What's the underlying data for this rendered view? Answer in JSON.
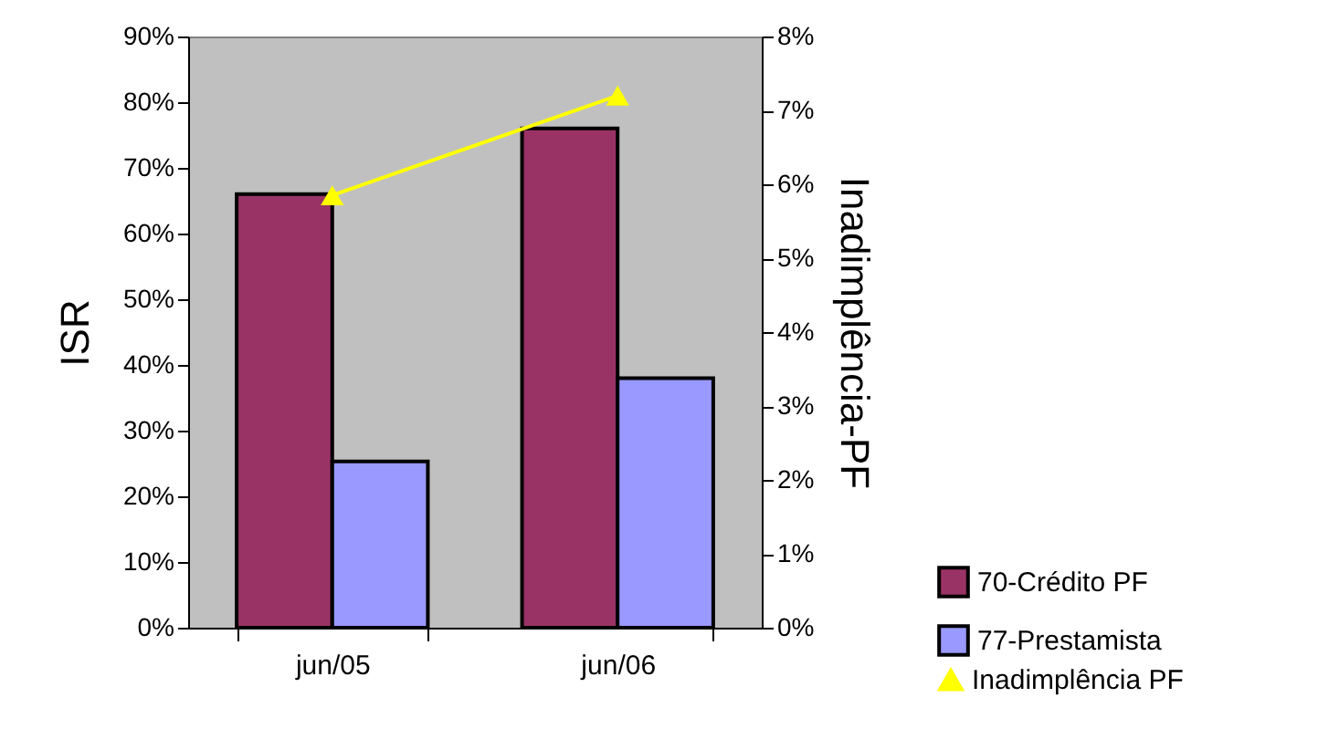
{
  "chart_data": {
    "type": "bar",
    "categories": [
      "jun/05",
      "jun/06"
    ],
    "series": [
      {
        "name": "70-Crédito PF",
        "color": "#993366",
        "values": [
          66,
          76
        ]
      },
      {
        "name": "77-Prestamista",
        "color": "#9999ff",
        "values": [
          25.3,
          38
        ]
      },
      {
        "name": "Inadimplência PF",
        "type": "line",
        "axis": "y2",
        "color": "#ffff00",
        "values": [
          5.85,
          7.2
        ]
      }
    ],
    "ylabel": "ISR",
    "y2label": "Inadimplência-PF",
    "ylim": [
      0,
      90
    ],
    "yticks": [
      {
        "value": 0,
        "label": "0%"
      },
      {
        "value": 10,
        "label": "10%"
      },
      {
        "value": 20,
        "label": "20%"
      },
      {
        "value": 30,
        "label": "30%"
      },
      {
        "value": 40,
        "label": "40%"
      },
      {
        "value": 50,
        "label": "50%"
      },
      {
        "value": 60,
        "label": "60%"
      },
      {
        "value": 70,
        "label": "70%"
      },
      {
        "value": 80,
        "label": "80%"
      },
      {
        "value": 90,
        "label": "90%"
      }
    ],
    "y2lim": [
      0,
      8
    ],
    "y2ticks": [
      {
        "value": 0,
        "label": "0%"
      },
      {
        "value": 1,
        "label": "1%"
      },
      {
        "value": 2,
        "label": "2%"
      },
      {
        "value": 3,
        "label": "3%"
      },
      {
        "value": 4,
        "label": "4%"
      },
      {
        "value": 5,
        "label": "5%"
      },
      {
        "value": 6,
        "label": "6%"
      },
      {
        "value": 7,
        "label": "7%"
      },
      {
        "value": 8,
        "label": "8%"
      }
    ],
    "marker": "triangle",
    "legend": "bottom right",
    "grid": false
  }
}
